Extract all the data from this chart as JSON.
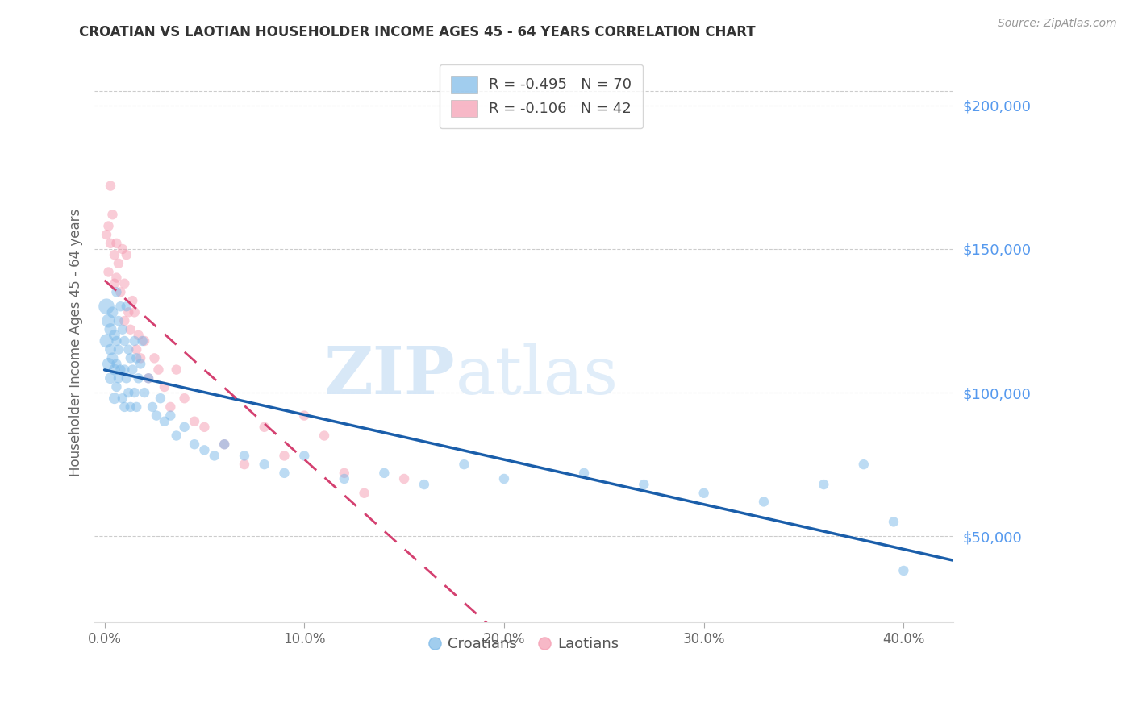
{
  "title": "CROATIAN VS LAOTIAN HOUSEHOLDER INCOME AGES 45 - 64 YEARS CORRELATION CHART",
  "source": "Source: ZipAtlas.com",
  "ylabel": "Householder Income Ages 45 - 64 years",
  "xlabel_ticks": [
    "0.0%",
    "10.0%",
    "20.0%",
    "30.0%",
    "40.0%"
  ],
  "xlabel_vals": [
    0.0,
    0.1,
    0.2,
    0.3,
    0.4
  ],
  "ytick_labels": [
    "$50,000",
    "$100,000",
    "$150,000",
    "$200,000"
  ],
  "ytick_vals": [
    50000,
    100000,
    150000,
    200000
  ],
  "ymin": 20000,
  "ymax": 215000,
  "xmin": -0.005,
  "xmax": 0.425,
  "croatian_R": -0.495,
  "croatian_N": 70,
  "laotian_R": -0.106,
  "laotian_N": 42,
  "croatian_color": "#7ab8e8",
  "laotian_color": "#f59ab0",
  "trendline_croatian_color": "#1a5eaa",
  "trendline_laotian_color": "#d44070",
  "watermark_zip": "ZIP",
  "watermark_atlas": "atlas",
  "legend_R1": "R = ",
  "legend_R1_val": "-0.495",
  "legend_N1": "  N = ",
  "legend_N1_val": "70",
  "legend_R2": "R = ",
  "legend_R2_val": "-0.106",
  "legend_N2": "  N = ",
  "legend_N2_val": "42",
  "croatian_x": [
    0.001,
    0.001,
    0.002,
    0.002,
    0.003,
    0.003,
    0.003,
    0.004,
    0.004,
    0.005,
    0.005,
    0.005,
    0.006,
    0.006,
    0.006,
    0.006,
    0.007,
    0.007,
    0.007,
    0.008,
    0.008,
    0.009,
    0.009,
    0.01,
    0.01,
    0.01,
    0.011,
    0.011,
    0.012,
    0.012,
    0.013,
    0.013,
    0.014,
    0.015,
    0.015,
    0.016,
    0.016,
    0.017,
    0.018,
    0.019,
    0.02,
    0.022,
    0.024,
    0.026,
    0.028,
    0.03,
    0.033,
    0.036,
    0.04,
    0.045,
    0.05,
    0.055,
    0.06,
    0.07,
    0.08,
    0.09,
    0.1,
    0.12,
    0.14,
    0.16,
    0.18,
    0.2,
    0.24,
    0.27,
    0.3,
    0.33,
    0.36,
    0.38,
    0.395,
    0.4
  ],
  "croatian_y": [
    130000,
    118000,
    125000,
    110000,
    122000,
    115000,
    105000,
    128000,
    112000,
    120000,
    108000,
    98000,
    135000,
    118000,
    110000,
    102000,
    125000,
    115000,
    105000,
    130000,
    108000,
    122000,
    98000,
    118000,
    108000,
    95000,
    130000,
    105000,
    115000,
    100000,
    112000,
    95000,
    108000,
    118000,
    100000,
    112000,
    95000,
    105000,
    110000,
    118000,
    100000,
    105000,
    95000,
    92000,
    98000,
    90000,
    92000,
    85000,
    88000,
    82000,
    80000,
    78000,
    82000,
    78000,
    75000,
    72000,
    78000,
    70000,
    72000,
    68000,
    75000,
    70000,
    72000,
    68000,
    65000,
    62000,
    68000,
    75000,
    55000,
    38000
  ],
  "croatian_sizes": [
    200,
    150,
    150,
    120,
    120,
    100,
    100,
    100,
    100,
    100,
    100,
    100,
    80,
    80,
    80,
    80,
    80,
    80,
    80,
    80,
    80,
    80,
    80,
    80,
    80,
    80,
    80,
    80,
    80,
    80,
    80,
    80,
    80,
    80,
    80,
    80,
    80,
    80,
    80,
    80,
    80,
    80,
    80,
    80,
    80,
    80,
    80,
    80,
    80,
    80,
    80,
    80,
    80,
    80,
    80,
    80,
    80,
    80,
    80,
    80,
    80,
    80,
    80,
    80,
    80,
    80,
    80,
    80,
    80,
    80
  ],
  "laotian_x": [
    0.001,
    0.002,
    0.002,
    0.003,
    0.003,
    0.004,
    0.005,
    0.005,
    0.006,
    0.006,
    0.007,
    0.008,
    0.009,
    0.01,
    0.01,
    0.011,
    0.012,
    0.013,
    0.014,
    0.015,
    0.016,
    0.017,
    0.018,
    0.02,
    0.022,
    0.025,
    0.027,
    0.03,
    0.033,
    0.036,
    0.04,
    0.045,
    0.05,
    0.06,
    0.07,
    0.08,
    0.09,
    0.1,
    0.11,
    0.12,
    0.13,
    0.15
  ],
  "laotian_y": [
    155000,
    158000,
    142000,
    172000,
    152000,
    162000,
    148000,
    138000,
    152000,
    140000,
    145000,
    135000,
    150000,
    138000,
    125000,
    148000,
    128000,
    122000,
    132000,
    128000,
    115000,
    120000,
    112000,
    118000,
    105000,
    112000,
    108000,
    102000,
    95000,
    108000,
    98000,
    90000,
    88000,
    82000,
    75000,
    88000,
    78000,
    92000,
    85000,
    72000,
    65000,
    70000
  ],
  "laotian_sizes": [
    80,
    80,
    80,
    80,
    80,
    80,
    80,
    80,
    80,
    80,
    80,
    80,
    80,
    80,
    80,
    80,
    80,
    80,
    80,
    80,
    80,
    80,
    80,
    80,
    80,
    80,
    80,
    80,
    80,
    80,
    80,
    80,
    80,
    80,
    80,
    80,
    80,
    80,
    80,
    80,
    80,
    80
  ]
}
